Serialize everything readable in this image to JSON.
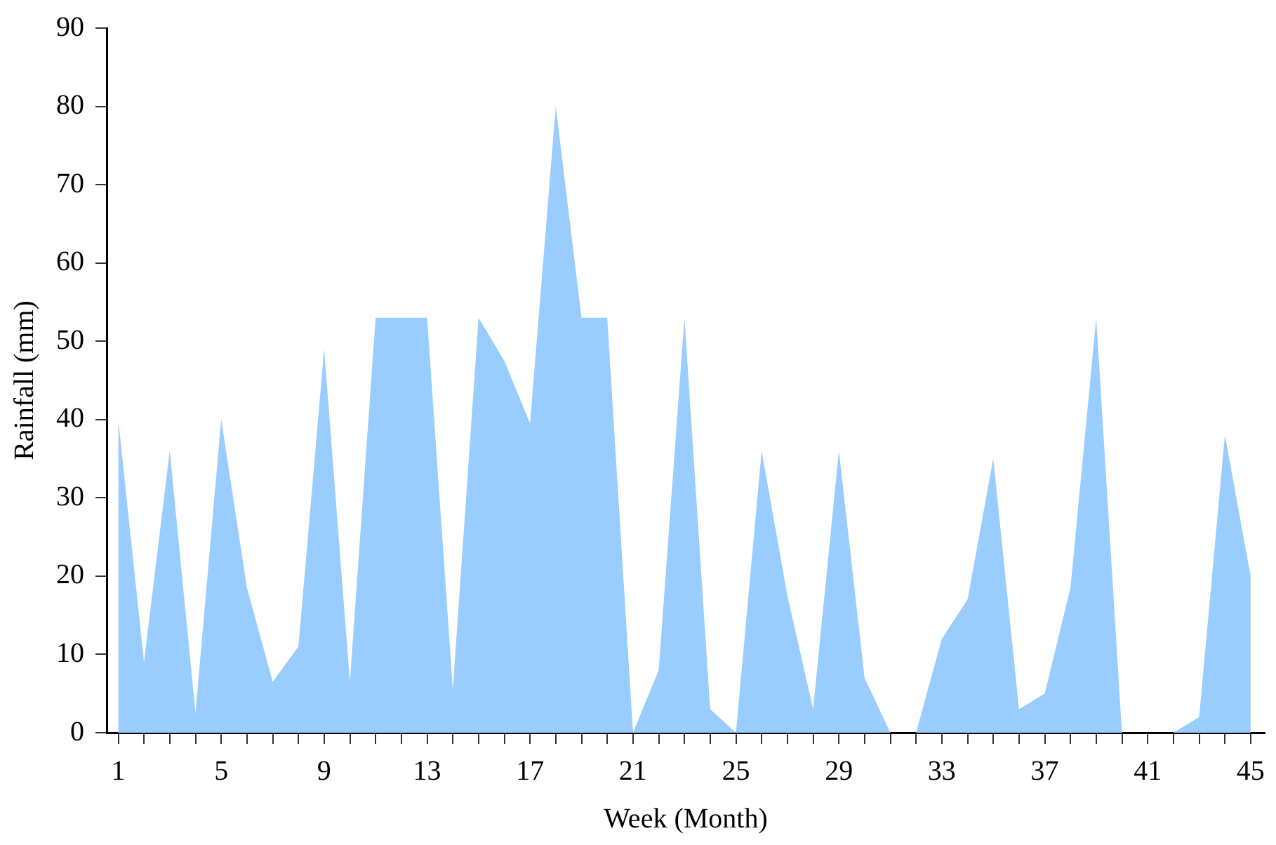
{
  "chart_data": {
    "type": "area",
    "xlabel": "Week (Month)",
    "ylabel": "Rainfall (mm)",
    "x": [
      1,
      2,
      3,
      4,
      5,
      6,
      7,
      8,
      9,
      10,
      11,
      12,
      13,
      14,
      15,
      16,
      17,
      18,
      19,
      20,
      21,
      22,
      23,
      24,
      25,
      26,
      27,
      28,
      29,
      30,
      31,
      32,
      33,
      34,
      35,
      36,
      37,
      38,
      39,
      40,
      41,
      42,
      43,
      44,
      45
    ],
    "series": [
      {
        "color": "#99ccff",
        "values": [
          40,
          9,
          36,
          2.5,
          40,
          18.5,
          6.5,
          11,
          49,
          6.5,
          53,
          53,
          53,
          5.5,
          53,
          47.5,
          39.5,
          80,
          53,
          53,
          0,
          8,
          53,
          3,
          0,
          36,
          17.5,
          3,
          36,
          7,
          0,
          0,
          12,
          17,
          35,
          3,
          5,
          18.5,
          53,
          0,
          0,
          0,
          2,
          38,
          20
        ]
      }
    ],
    "xlim": [
      0.55,
      45.55
    ],
    "xticks": [
      1,
      {
        "value": 2,
        "label": null
      },
      {
        "value": 3,
        "label": null
      },
      {
        "value": 4,
        "label": null
      },
      5,
      {
        "value": 6,
        "label": null
      },
      {
        "value": 7,
        "label": null
      },
      {
        "value": 8,
        "label": null
      },
      9,
      {
        "value": 10,
        "label": null
      },
      {
        "value": 11,
        "label": null
      },
      {
        "value": 12,
        "label": null
      },
      13,
      {
        "value": 14,
        "label": null
      },
      {
        "value": 15,
        "label": null
      },
      {
        "value": 16,
        "label": null
      },
      17,
      {
        "value": 18,
        "label": null
      },
      {
        "value": 19,
        "label": null
      },
      {
        "value": 20,
        "label": null
      },
      21,
      {
        "value": 22,
        "label": null
      },
      {
        "value": 23,
        "label": null
      },
      {
        "value": 24,
        "label": null
      },
      25,
      {
        "value": 26,
        "label": null
      },
      {
        "value": 27,
        "label": null
      },
      {
        "value": 28,
        "label": null
      },
      29,
      {
        "value": 30,
        "label": null
      },
      {
        "value": 31,
        "label": null
      },
      {
        "value": 32,
        "label": null
      },
      33,
      {
        "value": 34,
        "label": null
      },
      {
        "value": 35,
        "label": null
      },
      {
        "value": 36,
        "label": null
      },
      37,
      {
        "value": 38,
        "label": null
      },
      {
        "value": 39,
        "label": null
      },
      {
        "value": 40,
        "label": null
      },
      41,
      {
        "value": 42,
        "label": null
      },
      {
        "value": 43,
        "label": null
      },
      {
        "value": 44,
        "label": null
      },
      45
    ],
    "ylim": [
      0,
      90
    ],
    "yticks": [
      0,
      10,
      20,
      30,
      40,
      50,
      60,
      70,
      80,
      90
    ],
    "grid": false,
    "legend": false,
    "marker": "none"
  }
}
